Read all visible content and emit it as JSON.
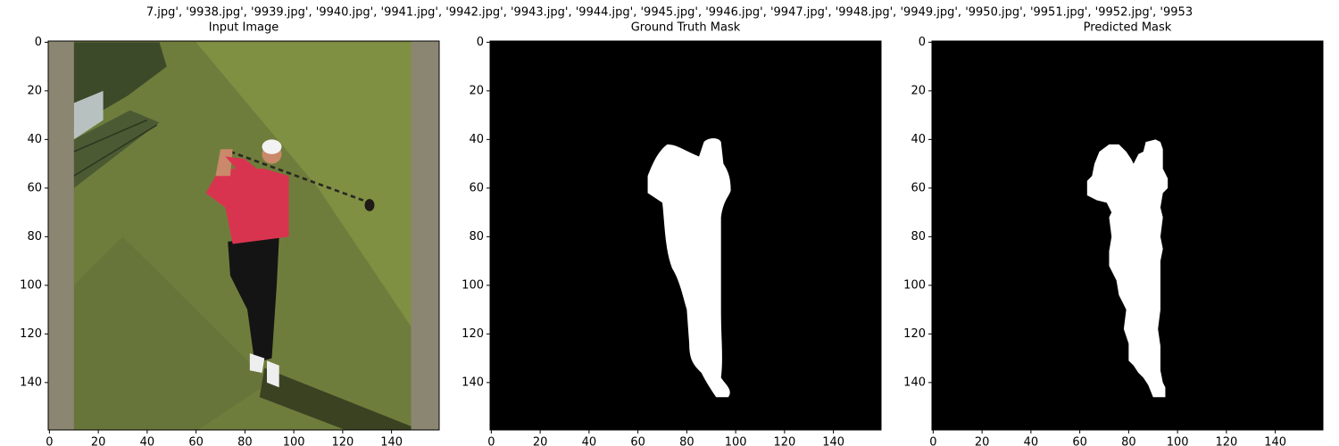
{
  "figure_title": "7.jpg', '9938.jpg', '9939.jpg', '9940.jpg', '9941.jpg', '9942.jpg', '9943.jpg', '9944.jpg', '9945.jpg', '9946.jpg', '9947.jpg', '9948.jpg', '9949.jpg', '9950.jpg', '9951.jpg', '9952.jpg', '9953",
  "chart_data": [
    {
      "type": "image",
      "title": "Input Image",
      "xlim": [
        -0.5,
        159.5
      ],
      "ylim": [
        159.5,
        -0.5
      ],
      "xticks": [
        0,
        20,
        40,
        60,
        80,
        100,
        120,
        140
      ],
      "yticks": [
        0,
        20,
        40,
        60,
        80,
        100,
        120,
        140
      ]
    },
    {
      "type": "image",
      "title": "Ground Truth Mask",
      "xlim": [
        -0.5,
        159.5
      ],
      "ylim": [
        159.5,
        -0.5
      ],
      "xticks": [
        0,
        20,
        40,
        60,
        80,
        100,
        120,
        140
      ],
      "yticks": [
        0,
        20,
        40,
        60,
        80,
        100,
        120,
        140
      ]
    },
    {
      "type": "image",
      "title": "Predicted Mask",
      "xlim": [
        -0.5,
        159.5
      ],
      "ylim": [
        159.5,
        -0.5
      ],
      "xticks": [
        0,
        20,
        40,
        60,
        80,
        100,
        120,
        140
      ],
      "yticks": [
        0,
        20,
        40,
        60,
        80,
        100,
        120,
        140
      ]
    }
  ]
}
